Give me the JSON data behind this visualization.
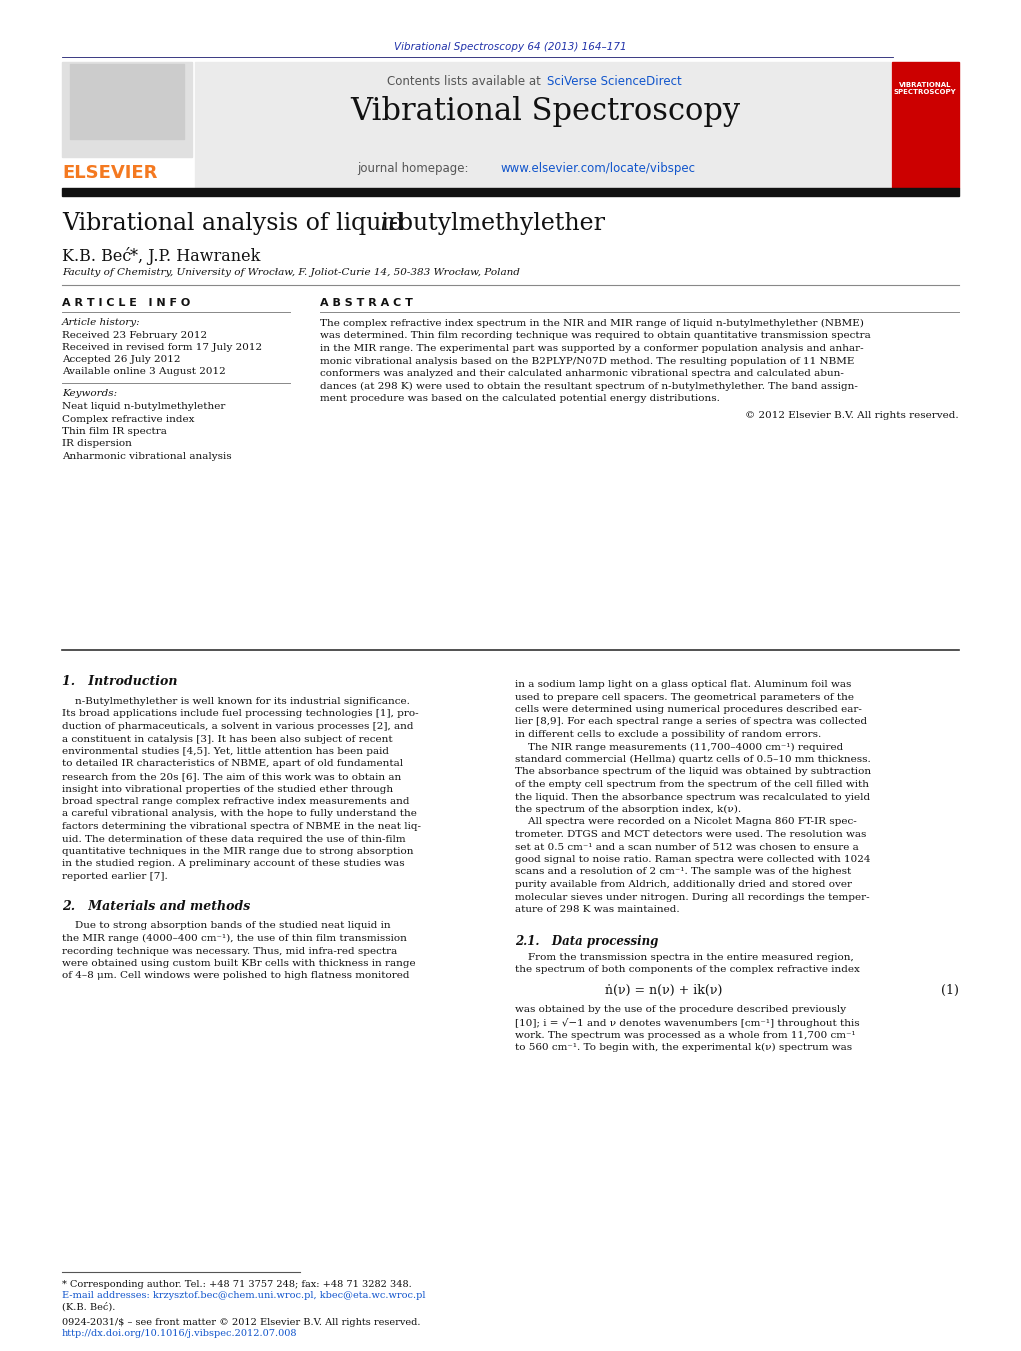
{
  "page_title": "Vibrational Spectroscopy 64 (2013) 164–171",
  "journal_name": "Vibrational Spectroscopy",
  "contents_line1": "Contents lists available at ",
  "contents_link": "SciVerse ScienceDirect",
  "homepage_prefix": "journal homepage: ",
  "homepage_link": "www.elsevier.com/locate/vibspec",
  "paper_title_1": "Vibrational analysis of liquid ",
  "paper_title_n": "n",
  "paper_title_2": "-butylmethylether",
  "author_plain_1": "K.B. Be",
  "author_c": "ć",
  "author_star": "*",
  "author_plain_2": ", J.P. Hawranek",
  "affiliation": "Faculty of Chemistry, University of Wrocław, F. Joliot-Curie 14, 50-383 Wrocław, Poland",
  "article_info_header": "A R T I C L E   I N F O",
  "abstract_header": "A B S T R A C T",
  "article_history_label": "Article history:",
  "received": "Received 23 February 2012",
  "received_revised": "Received in revised form 17 July 2012",
  "accepted": "Accepted 26 July 2012",
  "available": "Available online 3 August 2012",
  "keywords_label": "Keywords:",
  "keywords": [
    "Neat liquid n-butylmethylether",
    "Complex refractive index",
    "Thin film IR spectra",
    "IR dispersion",
    "Anharmonic vibrational analysis"
  ],
  "abstract_lines": [
    "The complex refractive index spectrum in the NIR and MIR range of liquid n-butylmethylether (NBME)",
    "was determined. Thin film recording technique was required to obtain quantitative transmission spectra",
    "in the MIR range. The experimental part was supported by a conformer population analysis and anhar-",
    "monic vibrational analysis based on the B2PLYP/N07D method. The resulting population of 11 NBME",
    "conformers was analyzed and their calculated anharmonic vibrational spectra and calculated abun-",
    "dances (at 298 K) were used to obtain the resultant spectrum of n-butylmethylether. The band assign-",
    "ment procedure was based on the calculated potential energy distributions."
  ],
  "copyright": "© 2012 Elsevier B.V. All rights reserved.",
  "section1_header": "1.   Introduction",
  "intro_left_lines": [
    "    n-Butylmethylether is well known for its industrial significance.",
    "Its broad applications include fuel processing technologies [1], pro-",
    "duction of pharmaceuticals, a solvent in various processes [2], and",
    "a constituent in catalysis [3]. It has been also subject of recent",
    "environmental studies [4,5]. Yet, little attention has been paid",
    "to detailed IR characteristics of NBME, apart of old fundamental",
    "research from the 20s [6]. The aim of this work was to obtain an",
    "insight into vibrational properties of the studied ether through",
    "broad spectral range complex refractive index measurements and",
    "a careful vibrational analysis, with the hope to fully understand the",
    "factors determining the vibrational spectra of NBME in the neat liq-",
    "uid. The determination of these data required the use of thin-film",
    "quantitative techniques in the MIR range due to strong absorption",
    "in the studied region. A preliminary account of these studies was",
    "reported earlier [7]."
  ],
  "intro_right_lines": [
    "in a sodium lamp light on a glass optical flat. Aluminum foil was",
    "used to prepare cell spacers. The geometrical parameters of the",
    "cells were determined using numerical procedures described ear-",
    "lier [8,9]. For each spectral range a series of spectra was collected",
    "in different cells to exclude a possibility of random errors.",
    "    The NIR range measurements (11,700–4000 cm⁻¹) required",
    "standard commercial (Hellma) quartz cells of 0.5–10 mm thickness.",
    "The absorbance spectrum of the liquid was obtained by subtraction",
    "of the empty cell spectrum from the spectrum of the cell filled with",
    "the liquid. Then the absorbance spectrum was recalculated to yield",
    "the spectrum of the absorption index, k(ν).",
    "    All spectra were recorded on a Nicolet Magna 860 FT-IR spec-",
    "trometer. DTGS and MCT detectors were used. The resolution was",
    "set at 0.5 cm⁻¹ and a scan number of 512 was chosen to ensure a",
    "good signal to noise ratio. Raman spectra were collected with 1024",
    "scans and a resolution of 2 cm⁻¹. The sample was of the highest",
    "purity available from Aldrich, additionally dried and stored over",
    "molecular sieves under nitrogen. During all recordings the temper-",
    "ature of 298 K was maintained."
  ],
  "section2_header": "2.   Materials and methods",
  "mat_left_lines": [
    "    Due to strong absorption bands of the studied neat liquid in",
    "the MIR range (4000–400 cm⁻¹), the use of thin film transmission",
    "recording technique was necessary. Thus, mid infra-red spectra",
    "were obtained using custom built KBr cells with thickness in range",
    "of 4–8 μm. Cell windows were polished to high flatness monitored"
  ],
  "section21_header": "2.1.   Data processing",
  "dp_lines": [
    "    From the transmission spectra in the entire measured region,",
    "the spectrum of both components of the complex refractive index"
  ],
  "equation_text": "ṅ(ν) = n(ν) + ik(ν)",
  "eq_label": "(1)",
  "eq_after_lines": [
    "was obtained by the use of the procedure described previously",
    "[10]; i = √−1 and ν denotes wavenumbers [cm⁻¹] throughout this",
    "work. The spectrum was processed as a whole from 11,700 cm⁻¹",
    "to 560 cm⁻¹. To begin with, the experimental k(ν) spectrum was"
  ],
  "footnote_line1": "* Corresponding author. Tel.: +48 71 3757 248; fax: +48 71 3282 348.",
  "footnote_line2": "E-mail addresses: krzysztof.bec@chem.uni.wroc.pl, kbec@eta.wc.wroc.pl",
  "footnote_line3": "(K.B. Beć).",
  "issn_line": "0924-2031/$ – see front matter © 2012 Elsevier B.V. All rights reserved.",
  "doi_line": "http://dx.doi.org/10.1016/j.vibspec.2012.07.008",
  "bg": "#ffffff",
  "navy": "#1a1a6e",
  "dark_blue_title": "#2233aa",
  "orange": "#f47920",
  "blue_link": "#1155cc",
  "red_cover": "#cc0000",
  "gray_band": "#ebebeb",
  "black_bar": "#111111",
  "dark_gray": "#333333",
  "mid_gray": "#777777",
  "text_black": "#111111"
}
